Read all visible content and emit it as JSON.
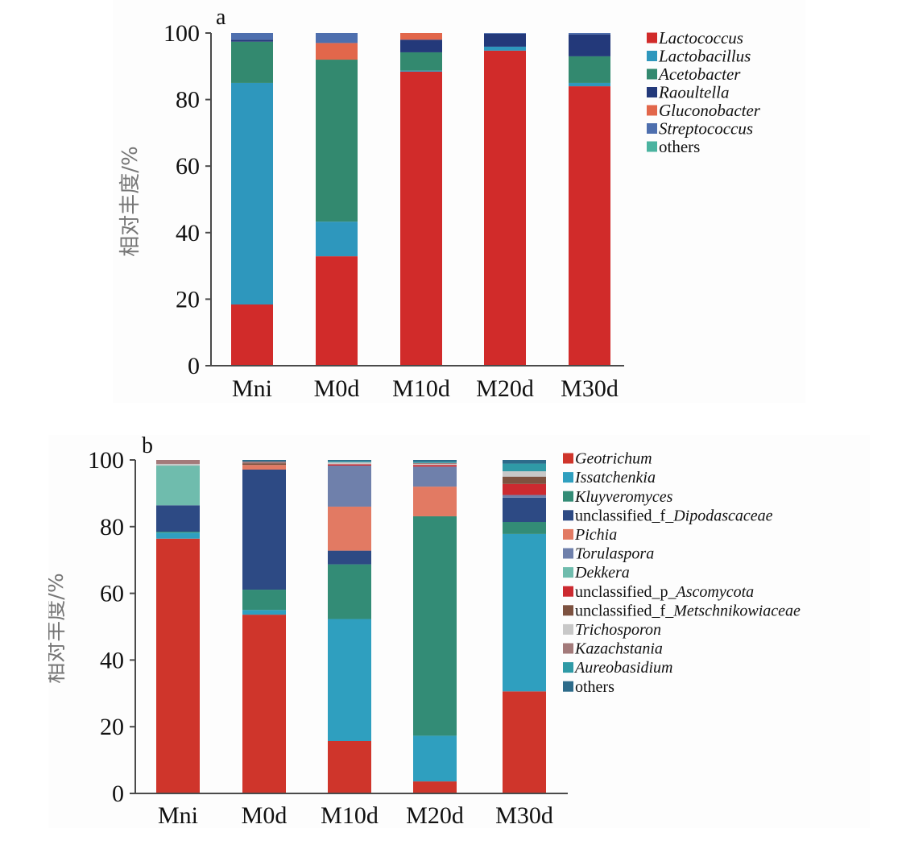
{
  "chart_data": [
    {
      "type": "bar",
      "stacked": true,
      "panel_label": "a",
      "title": "",
      "xlabel": "",
      "ylabel": "相对丰度/%",
      "ylim": [
        0,
        100
      ],
      "yticks": [
        0,
        20,
        40,
        60,
        80,
        100
      ],
      "grid": false,
      "legend_position": "right",
      "categories": [
        "Mni",
        "M0d",
        "M10d",
        "M20d",
        "M30d"
      ],
      "series": [
        {
          "name": "Lactococcus",
          "italic": true,
          "color": "#d12b2a",
          "values": [
            18.4,
            32.9,
            88.4,
            94.7,
            84.0
          ]
        },
        {
          "name": "Lactobacillus",
          "italic": true,
          "color": "#2e97bd",
          "values": [
            66.6,
            10.4,
            0.3,
            1.2,
            1.0
          ]
        },
        {
          "name": "Acetobacter",
          "italic": true,
          "color": "#33896f",
          "values": [
            12.4,
            48.7,
            5.5,
            0.0,
            8.0
          ]
        },
        {
          "name": "Raoultella",
          "italic": true,
          "color": "#23397a",
          "values": [
            0.6,
            0.0,
            3.8,
            3.9,
            6.6
          ]
        },
        {
          "name": "Gluconobacter",
          "italic": true,
          "color": "#e2674b",
          "values": [
            0.0,
            5.0,
            2.0,
            0.0,
            0.0
          ]
        },
        {
          "name": "Streptococcus",
          "italic": true,
          "color": "#4e6fae",
          "values": [
            2.0,
            3.0,
            0.0,
            0.2,
            0.4
          ]
        },
        {
          "name": "others",
          "italic": false,
          "color": "#4bb3a0",
          "values": [
            0.0,
            0.0,
            0.0,
            0.0,
            0.0
          ]
        }
      ]
    },
    {
      "type": "bar",
      "stacked": true,
      "panel_label": "b",
      "title": "",
      "xlabel": "",
      "ylabel": "相对丰度/%",
      "ylim": [
        0,
        100
      ],
      "yticks": [
        0,
        20,
        40,
        60,
        80,
        100
      ],
      "grid": false,
      "legend_position": "right",
      "categories": [
        "Mni",
        "M0d",
        "M10d",
        "M20d",
        "M30d"
      ],
      "series": [
        {
          "name": "Geotrichum",
          "prefix": "",
          "italic_part": "Geotrichum",
          "color": "#cf352b",
          "values": [
            76.4,
            53.6,
            15.7,
            3.6,
            30.6
          ]
        },
        {
          "name": "Issatchenkia",
          "prefix": "",
          "italic_part": "Issatchenkia",
          "color": "#2f9fbf",
          "values": [
            1.8,
            1.4,
            36.6,
            13.7,
            47.2
          ]
        },
        {
          "name": "Kluyveromyces",
          "prefix": "",
          "italic_part": "Kluyveromyces",
          "color": "#338c76",
          "values": [
            0.3,
            6.1,
            16.4,
            65.8,
            3.6
          ]
        },
        {
          "name": "unclassified_f_Dipodascaceae",
          "prefix": "unclassified_f_",
          "italic_part": "Dipodascaceae",
          "color": "#2d4a84",
          "values": [
            7.9,
            36.0,
            4.1,
            0.0,
            7.3
          ]
        },
        {
          "name": "Pichia",
          "prefix": "",
          "italic_part": "Pichia",
          "color": "#e27a63",
          "values": [
            0.0,
            1.4,
            13.2,
            8.9,
            0.0
          ]
        },
        {
          "name": "Torulaspora",
          "prefix": "",
          "italic_part": "Torulaspora",
          "color": "#6f80ab",
          "values": [
            0.0,
            0.0,
            12.3,
            6.0,
            0.8
          ]
        },
        {
          "name": "Dekkera",
          "prefix": "",
          "italic_part": "Dekkera",
          "color": "#6fbcad",
          "values": [
            11.9,
            0.0,
            0.0,
            0.0,
            0.0
          ]
        },
        {
          "name": "unclassified_p_Ascomycota",
          "prefix": "unclassified_p_",
          "italic_part": "Ascomycota",
          "color": "#cc2a30",
          "values": [
            0.0,
            0.0,
            0.4,
            0.5,
            3.3
          ]
        },
        {
          "name": "unclassified_f_Metschnikowiaceae",
          "prefix": "unclassified_f_",
          "italic_part": "Metschnikowiaceae",
          "color": "#7d5240",
          "values": [
            0.0,
            0.5,
            0.0,
            0.0,
            2.2
          ]
        },
        {
          "name": "Trichosporon",
          "prefix": "",
          "italic_part": "Trichosporon",
          "color": "#c8c8c8",
          "values": [
            0.5,
            0.0,
            0.6,
            0.3,
            1.6
          ]
        },
        {
          "name": "Kazachstania",
          "prefix": "",
          "italic_part": "Kazachstania",
          "color": "#a37a7a",
          "values": [
            1.2,
            0.5,
            0.0,
            0.3,
            0.0
          ]
        },
        {
          "name": "Aureobasidium",
          "prefix": "",
          "italic_part": "Aureobasidium",
          "color": "#2f9aa6",
          "values": [
            0.0,
            0.0,
            0.3,
            0.4,
            2.3
          ]
        },
        {
          "name": "others",
          "prefix": "others",
          "italic_part": "",
          "color": "#2d6b8a",
          "values": [
            0.0,
            0.5,
            0.4,
            0.5,
            1.1
          ]
        }
      ]
    }
  ]
}
